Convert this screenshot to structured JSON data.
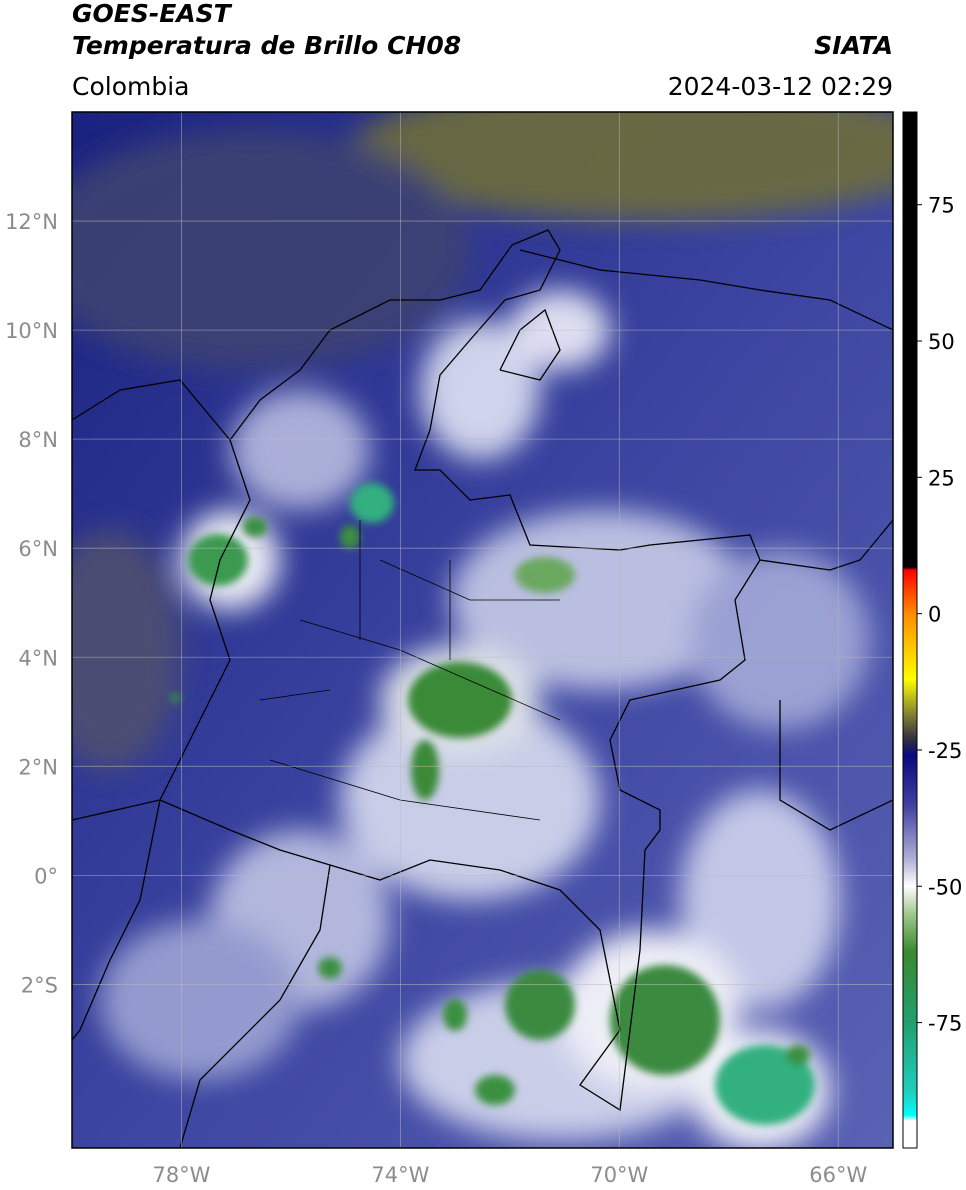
{
  "header": {
    "satellite": "GOES-EAST",
    "product": "Temperatura de Brillo CH08",
    "source": "SIATA",
    "region": "Colombia",
    "datetime": "2024-03-12 02:29"
  },
  "map": {
    "xlim": [
      -80,
      -65
    ],
    "ylim": [
      -5,
      14
    ],
    "grid": true,
    "xticks": [
      {
        "value": -78,
        "label": "78°W"
      },
      {
        "value": -74,
        "label": "74°W"
      },
      {
        "value": -70,
        "label": "70°W"
      },
      {
        "value": -66,
        "label": "66°W"
      }
    ],
    "yticks": [
      {
        "value": 12,
        "label": "12°N"
      },
      {
        "value": 10,
        "label": "10°N"
      },
      {
        "value": 8,
        "label": "8°N"
      },
      {
        "value": 6,
        "label": "6°N"
      },
      {
        "value": 4,
        "label": "4°N"
      },
      {
        "value": 2,
        "label": "2°N"
      },
      {
        "value": 0,
        "label": "0°"
      },
      {
        "value": -2,
        "label": "2°S"
      }
    ]
  },
  "colorbar": {
    "lim": [
      -98,
      92
    ],
    "ticks": [
      75,
      50,
      25,
      0,
      -25,
      -50,
      -75
    ],
    "colormap": [
      [
        92,
        "#000000"
      ],
      [
        8.5,
        "#000000"
      ],
      [
        8,
        "#ff0000"
      ],
      [
        0,
        "#ff8c00"
      ],
      [
        -12,
        "#ffff00"
      ],
      [
        -18,
        "#8a8a30"
      ],
      [
        -23,
        "#303040"
      ],
      [
        -26,
        "#0a0a80"
      ],
      [
        -35,
        "#4040a0"
      ],
      [
        -45,
        "#b0b0d8"
      ],
      [
        -50,
        "#ffffff"
      ],
      [
        -55,
        "#a0c890"
      ],
      [
        -62,
        "#3a8a30"
      ],
      [
        -75,
        "#20a070"
      ],
      [
        -88,
        "#20d0c0"
      ],
      [
        -92,
        "#00ffff"
      ],
      [
        -93,
        "#ffffff"
      ],
      [
        -98,
        "#ffffff"
      ]
    ]
  }
}
